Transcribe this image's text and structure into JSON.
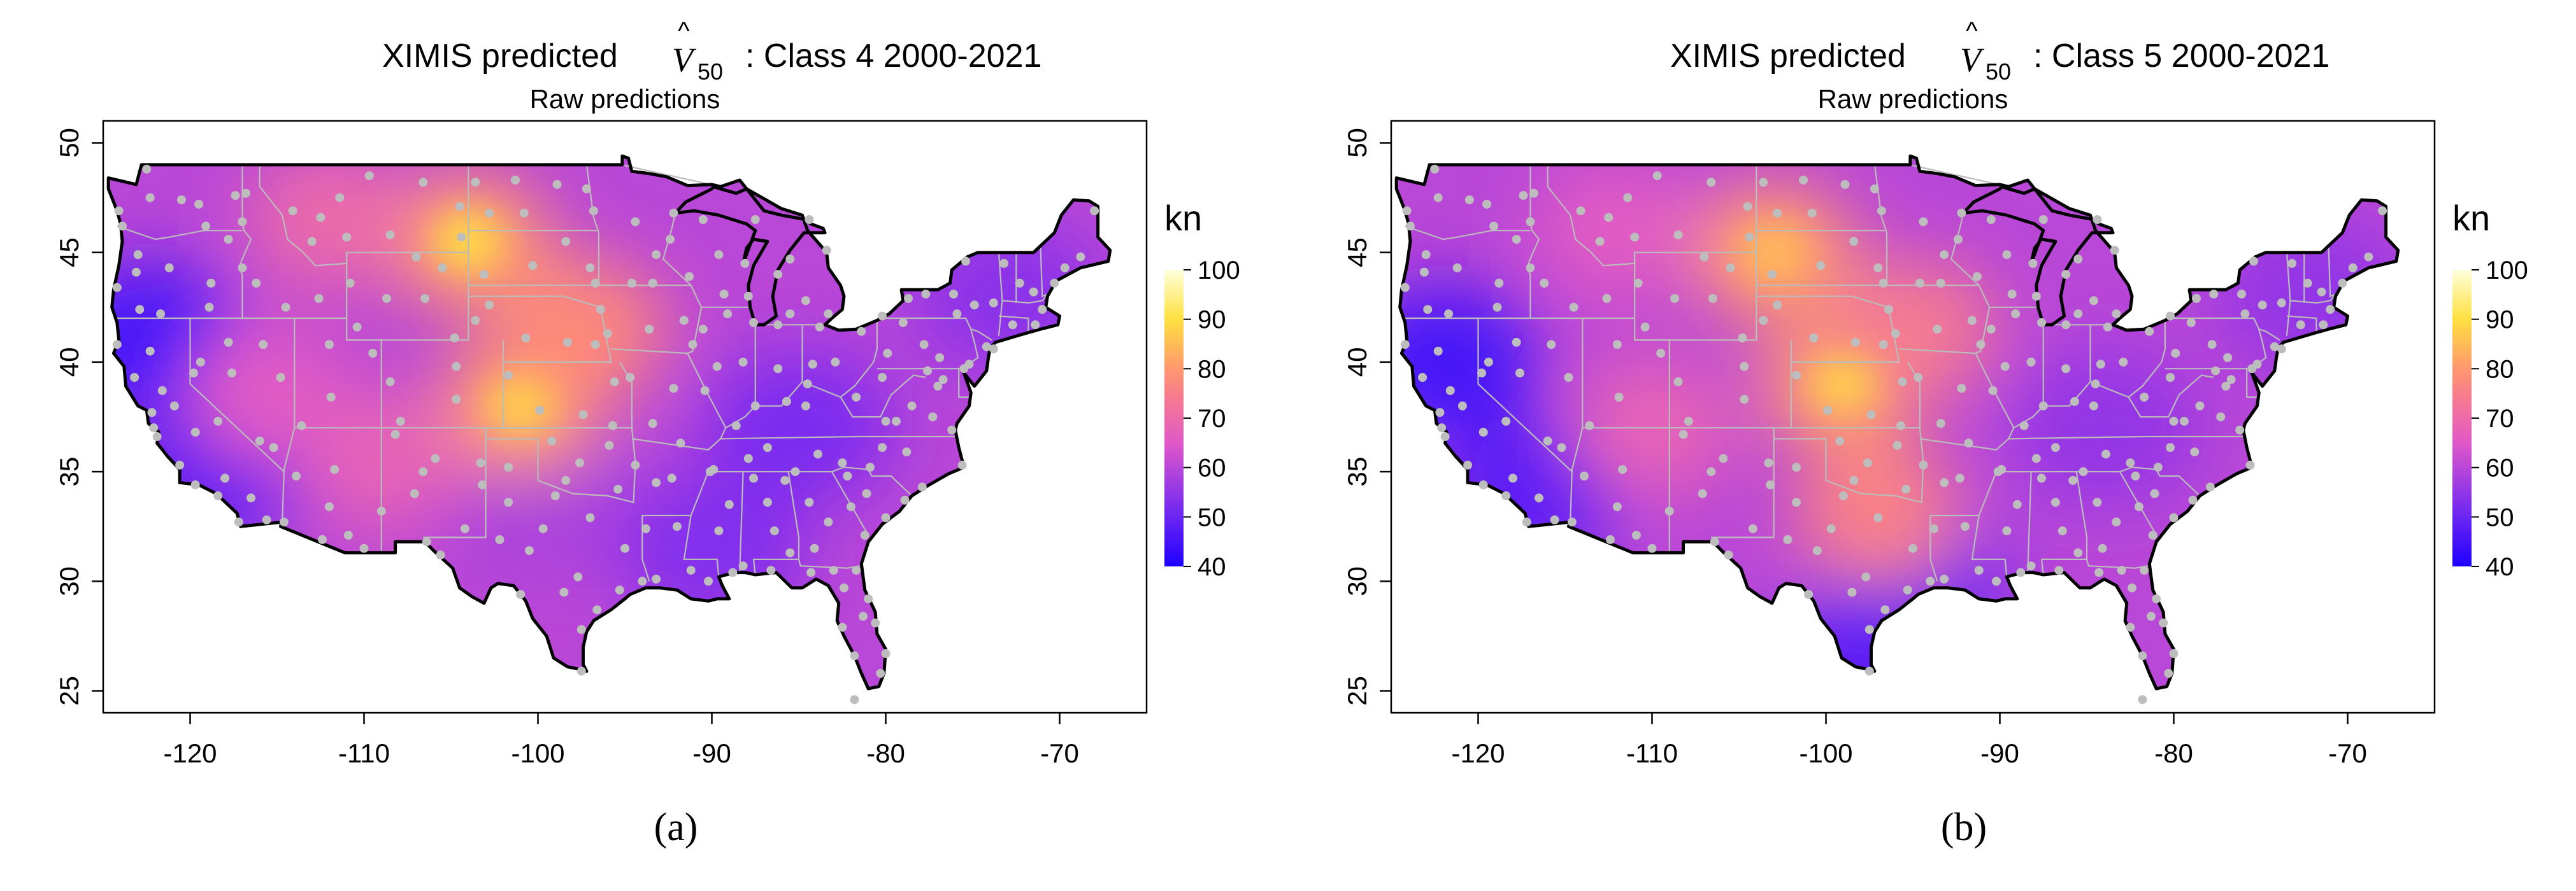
{
  "colors": {
    "low": "#1d00ff",
    "mid_low": "#7a2cf0",
    "mid": "#e058c8",
    "mid_high": "#ff8a78",
    "high": "#ffe040",
    "top": "#ffffdc",
    "station": "#bdbdbd",
    "state_border": "#bbbbbb",
    "coast": "#000000"
  },
  "panels": [
    {
      "label": "(a)",
      "title_prefix": "XIMIS predicted",
      "title_symbol": "V",
      "title_hat": "^",
      "title_subscript": "50",
      "title_suffix": ": Class 4 2000-2021",
      "subtitle": "Raw predictions",
      "legend_unit": "kn",
      "hotspots": [
        {
          "lon": -104,
          "lat": 45.5,
          "value": 90
        },
        {
          "lon": -101,
          "lat": 38,
          "value": 88
        },
        {
          "lon": -97.5,
          "lat": 41.5,
          "value": 78
        },
        {
          "lon": -112,
          "lat": 46.5,
          "value": 70
        },
        {
          "lon": -109,
          "lat": 35.5,
          "value": 68
        },
        {
          "lon": -115.5,
          "lat": 38.5,
          "value": 66
        }
      ],
      "coolspots": [
        {
          "lon": -122.5,
          "lat": 41,
          "value": 45
        },
        {
          "lon": -119,
          "lat": 35,
          "value": 48
        },
        {
          "lon": -85,
          "lat": 37,
          "value": 52
        },
        {
          "lon": -73,
          "lat": 43,
          "value": 54
        },
        {
          "lon": -90,
          "lat": 31.5,
          "value": 53
        },
        {
          "lon": -100,
          "lat": 34,
          "value": 58
        }
      ]
    },
    {
      "label": "(b)",
      "title_prefix": "XIMIS predicted",
      "title_symbol": "V",
      "title_hat": "^",
      "title_subscript": "50",
      "title_suffix": ": Class 5 2000-2021",
      "subtitle": "Raw predictions",
      "legend_unit": "kn",
      "hotspots": [
        {
          "lon": -103,
          "lat": 45,
          "value": 85
        },
        {
          "lon": -99,
          "lat": 39,
          "value": 88
        },
        {
          "lon": -97,
          "lat": 33,
          "value": 76
        },
        {
          "lon": -95,
          "lat": 41.5,
          "value": 74
        },
        {
          "lon": -110,
          "lat": 37,
          "value": 68
        },
        {
          "lon": -112,
          "lat": 46,
          "value": 66
        }
      ],
      "coolspots": [
        {
          "lon": -122,
          "lat": 40,
          "value": 45
        },
        {
          "lon": -117,
          "lat": 34,
          "value": 48
        },
        {
          "lon": -84,
          "lat": 37,
          "value": 55
        },
        {
          "lon": -72,
          "lat": 43,
          "value": 55
        },
        {
          "lon": -95,
          "lat": 30,
          "value": 50
        },
        {
          "lon": -97.5,
          "lat": 26.5,
          "value": 48
        }
      ]
    }
  ],
  "axes": {
    "x_ticks": [
      -120,
      -110,
      -100,
      -90,
      -80,
      -70
    ],
    "y_ticks": [
      25,
      30,
      35,
      40,
      45,
      50
    ],
    "xlim": [
      -125,
      -65
    ],
    "ylim": [
      24,
      51
    ]
  },
  "legend": {
    "ticks": [
      40,
      50,
      60,
      70,
      80,
      90,
      100
    ],
    "range": [
      40,
      100
    ]
  },
  "stations": [
    [
      -124.1,
      46.9
    ],
    [
      -123.9,
      46.2
    ],
    [
      -122.3,
      47.5
    ],
    [
      -122.5,
      48.8
    ],
    [
      -120.5,
      47.4
    ],
    [
      -119.5,
      47.2
    ],
    [
      -117.4,
      47.6
    ],
    [
      -117.0,
      46.4
    ],
    [
      -119.1,
      46.2
    ],
    [
      -123.0,
      44.9
    ],
    [
      -123.1,
      44.1
    ],
    [
      -122.9,
      42.4
    ],
    [
      -121.2,
      44.3
    ],
    [
      -118.8,
      43.6
    ],
    [
      -117.8,
      45.6
    ],
    [
      -124.2,
      43.4
    ],
    [
      -124.2,
      40.8
    ],
    [
      -122.3,
      40.5
    ],
    [
      -121.6,
      38.7
    ],
    [
      -122.2,
      37.7
    ],
    [
      -121.9,
      36.6
    ],
    [
      -120.6,
      35.3
    ],
    [
      -119.7,
      34.4
    ],
    [
      -118.4,
      33.9
    ],
    [
      -117.2,
      32.7
    ],
    [
      -116.5,
      33.8
    ],
    [
      -119.7,
      36.8
    ],
    [
      -118.4,
      37.3
    ],
    [
      -119.8,
      39.5
    ],
    [
      -117.8,
      40.9
    ],
    [
      -115.8,
      40.8
    ],
    [
      -114.8,
      39.3
    ],
    [
      -115.2,
      36.1
    ],
    [
      -114.6,
      32.7
    ],
    [
      -112.0,
      33.4
    ],
    [
      -110.9,
      32.1
    ],
    [
      -111.7,
      35.1
    ],
    [
      -113.6,
      37.1
    ],
    [
      -112.0,
      40.8
    ],
    [
      -111.9,
      38.4
    ],
    [
      -109.5,
      40.4
    ],
    [
      -108.5,
      39.1
    ],
    [
      -107.9,
      37.3
    ],
    [
      -104.7,
      39.8
    ],
    [
      -104.7,
      38.3
    ],
    [
      -106.6,
      35.0
    ],
    [
      -105.9,
      35.6
    ],
    [
      -103.2,
      34.4
    ],
    [
      -106.4,
      31.8
    ],
    [
      -104.2,
      32.4
    ],
    [
      -101.7,
      33.6
    ],
    [
      -101.7,
      35.2
    ],
    [
      -102.2,
      31.9
    ],
    [
      -100.5,
      31.4
    ],
    [
      -98.5,
      29.5
    ],
    [
      -97.7,
      30.2
    ],
    [
      -97.0,
      32.9
    ],
    [
      -95.3,
      29.6
    ],
    [
      -97.5,
      25.9
    ],
    [
      -97.5,
      27.8
    ],
    [
      -94.0,
      30.0
    ],
    [
      -93.2,
      30.1
    ],
    [
      -91.2,
      30.5
    ],
    [
      -90.2,
      30.0
    ],
    [
      -92.0,
      32.5
    ],
    [
      -93.8,
      32.4
    ],
    [
      -97.6,
      35.4
    ],
    [
      -95.9,
      36.2
    ],
    [
      -99.2,
      36.4
    ],
    [
      -98.4,
      34.6
    ],
    [
      -97.4,
      37.6
    ],
    [
      -99.9,
      37.8
    ],
    [
      -101.7,
      39.4
    ],
    [
      -95.6,
      39.1
    ],
    [
      -94.7,
      39.3
    ],
    [
      -92.2,
      38.8
    ],
    [
      -90.4,
      38.7
    ],
    [
      -93.4,
      37.2
    ],
    [
      -92.3,
      34.7
    ],
    [
      -94.4,
      35.3
    ],
    [
      -90.1,
      35.0
    ],
    [
      -89.6,
      32.3
    ],
    [
      -88.8,
      30.4
    ],
    [
      -88.2,
      30.7
    ],
    [
      -86.6,
      30.5
    ],
    [
      -84.3,
      30.4
    ],
    [
      -86.8,
      33.6
    ],
    [
      -86.4,
      32.3
    ],
    [
      -85.5,
      31.3
    ],
    [
      -84.4,
      33.6
    ],
    [
      -83.3,
      32.7
    ],
    [
      -81.2,
      32.1
    ],
    [
      -82.4,
      29.7
    ],
    [
      -81.7,
      30.5
    ],
    [
      -80.6,
      28.1
    ],
    [
      -81.3,
      28.4
    ],
    [
      -82.5,
      27.9
    ],
    [
      -81.8,
      26.6
    ],
    [
      -80.3,
      25.8
    ],
    [
      -81.8,
      24.6
    ],
    [
      -80.0,
      26.7
    ],
    [
      -81.0,
      29.2
    ],
    [
      -83.0,
      30.5
    ],
    [
      -80.0,
      32.9
    ],
    [
      -81.1,
      34.0
    ],
    [
      -82.2,
      34.8
    ],
    [
      -78.9,
      33.7
    ],
    [
      -77.9,
      34.3
    ],
    [
      -80.9,
      35.2
    ],
    [
      -78.8,
      35.9
    ],
    [
      -80.2,
      36.1
    ],
    [
      -82.5,
      35.4
    ],
    [
      -75.6,
      35.3
    ],
    [
      -76.2,
      36.9
    ],
    [
      -77.3,
      37.5
    ],
    [
      -79.4,
      37.3
    ],
    [
      -80.0,
      37.3
    ],
    [
      -78.5,
      38.0
    ],
    [
      -77.0,
      38.9
    ],
    [
      -76.7,
      39.2
    ],
    [
      -75.5,
      39.7
    ],
    [
      -75.2,
      39.9
    ],
    [
      -74.2,
      40.7
    ],
    [
      -73.8,
      40.6
    ],
    [
      -72.7,
      41.7
    ],
    [
      -71.4,
      41.7
    ],
    [
      -71.0,
      42.4
    ],
    [
      -70.3,
      43.6
    ],
    [
      -68.8,
      44.8
    ],
    [
      -69.7,
      44.3
    ],
    [
      -68.0,
      46.9
    ],
    [
      -72.3,
      43.6
    ],
    [
      -73.2,
      44.5
    ],
    [
      -71.5,
      43.2
    ],
    [
      -73.8,
      42.7
    ],
    [
      -76.1,
      43.1
    ],
    [
      -78.7,
      42.9
    ],
    [
      -77.7,
      43.1
    ],
    [
      -75.9,
      42.2
    ],
    [
      -77.8,
      40.8
    ],
    [
      -79.9,
      40.4
    ],
    [
      -80.2,
      42.1
    ],
    [
      -76.9,
      40.2
    ],
    [
      -81.4,
      41.4
    ],
    [
      -82.9,
      40.0
    ],
    [
      -84.2,
      39.9
    ],
    [
      -84.5,
      39.0
    ],
    [
      -83.8,
      41.6
    ],
    [
      -81.7,
      38.4
    ],
    [
      -80.2,
      39.3
    ],
    [
      -85.7,
      38.2
    ],
    [
      -84.6,
      38.0
    ],
    [
      -86.8,
      36.1
    ],
    [
      -89.9,
      35.1
    ],
    [
      -83.9,
      35.8
    ],
    [
      -85.2,
      35.0
    ],
    [
      -87.6,
      41.8
    ],
    [
      -88.2,
      40.0
    ],
    [
      -89.7,
      39.8
    ],
    [
      -90.5,
      41.5
    ],
    [
      -89.1,
      42.2
    ],
    [
      -86.2,
      39.7
    ],
    [
      -87.5,
      38.0
    ],
    [
      -86.2,
      41.7
    ],
    [
      -85.5,
      42.2
    ],
    [
      -83.3,
      42.2
    ],
    [
      -84.6,
      42.8
    ],
    [
      -85.5,
      44.7
    ],
    [
      -87.5,
      46.5
    ],
    [
      -84.4,
      46.5
    ],
    [
      -83.4,
      45.1
    ],
    [
      -87.9,
      43.0
    ],
    [
      -89.3,
      43.1
    ],
    [
      -88.1,
      44.5
    ],
    [
      -91.3,
      43.9
    ],
    [
      -89.6,
      44.9
    ],
    [
      -90.5,
      46.5
    ],
    [
      -92.2,
      46.8
    ],
    [
      -93.2,
      44.9
    ],
    [
      -94.4,
      46.4
    ],
    [
      -96.8,
      46.9
    ],
    [
      -93.4,
      43.6
    ],
    [
      -94.6,
      43.6
    ],
    [
      -91.6,
      41.9
    ],
    [
      -93.6,
      41.5
    ],
    [
      -96.0,
      41.3
    ],
    [
      -96.7,
      40.8
    ],
    [
      -98.3,
      40.9
    ],
    [
      -100.7,
      41.1
    ],
    [
      -103.6,
      41.9
    ],
    [
      -102.8,
      42.6
    ],
    [
      -96.4,
      42.4
    ],
    [
      -98.4,
      45.5
    ],
    [
      -100.3,
      44.4
    ],
    [
      -103.1,
      44.0
    ],
    [
      -96.7,
      43.6
    ],
    [
      -100.8,
      46.8
    ],
    [
      -102.8,
      46.8
    ],
    [
      -97.2,
      47.9
    ],
    [
      -101.3,
      48.3
    ],
    [
      -103.6,
      48.2
    ],
    [
      -98.9,
      48.1
    ],
    [
      -104.8,
      41.1
    ],
    [
      -106.5,
      42.9
    ],
    [
      -108.7,
      42.9
    ],
    [
      -110.8,
      43.6
    ],
    [
      -107.0,
      44.8
    ],
    [
      -105.5,
      44.3
    ],
    [
      -108.5,
      45.8
    ],
    [
      -111.0,
      45.7
    ],
    [
      -112.5,
      46.6
    ],
    [
      -114.1,
      46.9
    ],
    [
      -111.4,
      47.5
    ],
    [
      -106.6,
      48.2
    ],
    [
      -109.7,
      48.5
    ],
    [
      -104.5,
      47.1
    ],
    [
      -116.2,
      43.6
    ],
    [
      -114.5,
      42.5
    ],
    [
      -112.6,
      42.9
    ],
    [
      -116.8,
      47.7
    ],
    [
      -113.0,
      45.5
    ],
    [
      -121.7,
      42.2
    ],
    [
      -119.4,
      40.0
    ],
    [
      -116.0,
      36.4
    ],
    [
      -118.0,
      34.7
    ],
    [
      -115.6,
      32.8
    ],
    [
      -110.0,
      31.5
    ],
    [
      -108.2,
      36.7
    ],
    [
      -103.3,
      35.4
    ],
    [
      -105.6,
      31.2
    ],
    [
      -99.0,
      33.9
    ],
    [
      -99.7,
      32.4
    ],
    [
      -101.0,
      29.4
    ],
    [
      -96.6,
      28.7
    ],
    [
      -95.0,
      31.5
    ],
    [
      -93.2,
      34.5
    ],
    [
      -91.8,
      36.3
    ],
    [
      -88.6,
      37.1
    ],
    [
      -89.0,
      33.5
    ],
    [
      -87.6,
      34.7
    ],
    [
      -85.8,
      34.6
    ],
    [
      -84.1,
      31.5
    ],
    [
      -82.0,
      33.4
    ],
    [
      -79.0,
      41.8
    ],
    [
      -77.6,
      39.6
    ],
    [
      -74.9,
      42.6
    ],
    [
      -75.4,
      44.6
    ],
    [
      -122.1,
      37.0
    ],
    [
      -120.9,
      38.0
    ],
    [
      -123.2,
      39.3
    ],
    [
      -118.9,
      42.5
    ],
    [
      -117.0,
      44.3
    ],
    [
      -109.0,
      33.2
    ],
    [
      -107.1,
      34.0
    ],
    [
      -112.4,
      31.9
    ],
    [
      -113.9,
      34.8
    ],
    [
      -117.6,
      39.5
    ],
    [
      -110.4,
      41.6
    ],
    [
      -104.4,
      45.7
    ],
    [
      -95.4,
      34.2
    ],
    [
      -97.0,
      44.3
    ],
    [
      -92.4,
      45.6
    ],
    [
      -95.7,
      37.1
    ],
    [
      -87.9,
      35.6
    ],
    [
      -91.1,
      40.8
    ],
    [
      -86.2,
      44.0
    ]
  ]
}
